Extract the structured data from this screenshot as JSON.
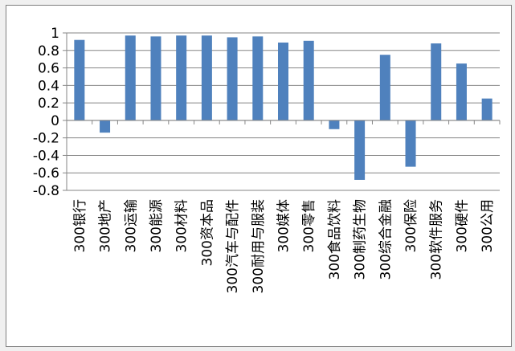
{
  "chart_data": {
    "type": "bar",
    "categories": [
      "300银行",
      "300地产",
      "300运输",
      "300能源",
      "300材料",
      "300资本品",
      "300汽车与配件",
      "300耐用与服装",
      "300媒体",
      "300零售",
      "300食品饮料",
      "300制药生物",
      "300综合金融",
      "300保险",
      "300软件服务",
      "300硬件",
      "300公用"
    ],
    "values": [
      0.92,
      -0.14,
      0.97,
      0.96,
      0.97,
      0.97,
      0.95,
      0.96,
      0.89,
      0.91,
      -0.1,
      -0.68,
      0.75,
      -0.53,
      0.88,
      0.65,
      0.25
    ],
    "title": "",
    "xlabel": "",
    "ylabel": "",
    "ylim": [
      -0.8,
      1
    ],
    "yticks": [
      1,
      0.8,
      0.6,
      0.4,
      0.2,
      0,
      -0.2,
      -0.4,
      -0.6,
      -0.8
    ],
    "ytick_labels": [
      "1",
      "0.8",
      "0.6",
      "0.4",
      "0.2",
      "0",
      "-0.2",
      "-0.4",
      "-0.6",
      "-0.8"
    ],
    "grid": true,
    "bar_color": "#4f81bd"
  }
}
